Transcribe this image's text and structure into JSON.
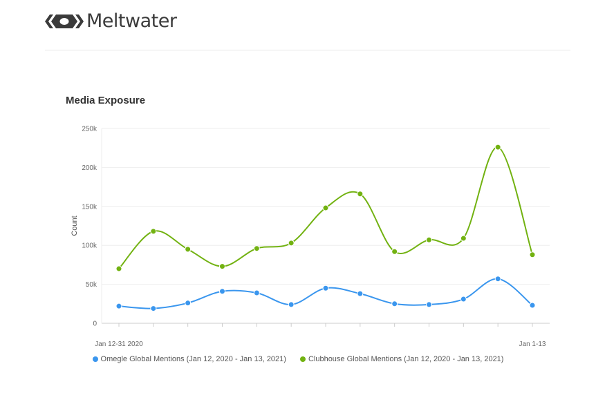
{
  "brand": {
    "name": "Meltwater"
  },
  "chart_data": {
    "type": "line",
    "title": "Media Exposure",
    "xlabel": "",
    "ylabel": "Count",
    "ylim": [
      0,
      250000
    ],
    "yticks": [
      0,
      50000,
      100000,
      150000,
      200000,
      250000
    ],
    "ytick_labels": [
      "0",
      "50k",
      "100k",
      "150k",
      "200k",
      "250k"
    ],
    "x_tick_labels": [
      {
        "index": 0,
        "label": "Jan 12-31 2020"
      },
      {
        "index": 12,
        "label": "Jan 1-13"
      }
    ],
    "grid": true,
    "legend_position": "bottom",
    "series": [
      {
        "name": "Omegle Global Mentions (Jan 12, 2020 - Jan 13, 2021)",
        "color": "#3a96ee",
        "values": [
          22000,
          19000,
          26000,
          41000,
          39000,
          24000,
          45000,
          38000,
          25000,
          24000,
          31000,
          57000,
          23000
        ]
      },
      {
        "name": "Clubhouse Global Mentions (Jan 12, 2020 - Jan 13, 2021)",
        "color": "#72b211",
        "values": [
          70000,
          118000,
          95000,
          73000,
          96000,
          103000,
          148000,
          166000,
          92000,
          107000,
          109000,
          226000,
          88000
        ]
      }
    ]
  }
}
